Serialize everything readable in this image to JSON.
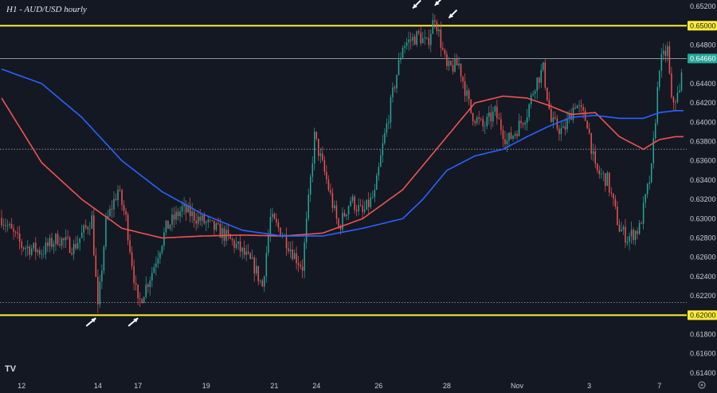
{
  "chart_data": {
    "type": "candlestick",
    "title": "H1 - AUD/USD hourly",
    "ylim": [
      0.6135,
      0.6525
    ],
    "y_ticks": [
      "0.65200",
      "0.64800",
      "0.64400",
      "0.64200",
      "0.64000",
      "0.63800",
      "0.63600",
      "0.63400",
      "0.63200",
      "0.63000",
      "0.62800",
      "0.62600",
      "0.62400",
      "0.62200",
      "0.61800",
      "0.61600",
      "0.61400"
    ],
    "x_ticks": [
      "12",
      "14",
      "17",
      "19",
      "21",
      "24",
      "26",
      "28",
      "Nov",
      "3",
      "7"
    ],
    "x_tick_index": [
      10,
      48,
      68,
      102,
      136,
      157,
      188,
      222,
      257,
      293,
      328
    ],
    "n_bars": 340,
    "horizontal_levels": [
      {
        "value": 0.65,
        "label": "0.65000",
        "style": "solid",
        "color": "#ffeb3b"
      },
      {
        "value": 0.6466,
        "label": "0.64660",
        "style": "solid",
        "color": "#b5b8c0"
      },
      {
        "value": 0.62,
        "label": "0.62000",
        "style": "solid",
        "color": "#ffeb3b"
      },
      {
        "value": 0.6372,
        "label": "",
        "style": "dotted",
        "color": "#9aa0aa"
      },
      {
        "value": 0.6213,
        "label": "",
        "style": "dotted",
        "color": "#9aa0aa"
      }
    ],
    "close_anchors": [
      [
        0,
        0.6301
      ],
      [
        10,
        0.6272
      ],
      [
        20,
        0.6266
      ],
      [
        28,
        0.628
      ],
      [
        36,
        0.627
      ],
      [
        45,
        0.63
      ],
      [
        48,
        0.6205
      ],
      [
        52,
        0.6295
      ],
      [
        58,
        0.633
      ],
      [
        62,
        0.63
      ],
      [
        68,
        0.621
      ],
      [
        75,
        0.6245
      ],
      [
        82,
        0.629
      ],
      [
        90,
        0.631
      ],
      [
        98,
        0.63
      ],
      [
        110,
        0.6285
      ],
      [
        118,
        0.627
      ],
      [
        126,
        0.625
      ],
      [
        130,
        0.623
      ],
      [
        134,
        0.63
      ],
      [
        140,
        0.6285
      ],
      [
        146,
        0.6262
      ],
      [
        150,
        0.625
      ],
      [
        156,
        0.6385
      ],
      [
        162,
        0.634
      ],
      [
        168,
        0.629
      ],
      [
        174,
        0.632
      ],
      [
        180,
        0.6305
      ],
      [
        186,
        0.6325
      ],
      [
        190,
        0.6375
      ],
      [
        196,
        0.644
      ],
      [
        200,
        0.648
      ],
      [
        208,
        0.649
      ],
      [
        212,
        0.648
      ],
      [
        216,
        0.651
      ],
      [
        222,
        0.6455
      ],
      [
        228,
        0.646
      ],
      [
        234,
        0.641
      ],
      [
        240,
        0.6395
      ],
      [
        246,
        0.641
      ],
      [
        252,
        0.638
      ],
      [
        256,
        0.639
      ],
      [
        262,
        0.641
      ],
      [
        266,
        0.644
      ],
      [
        270,
        0.6455
      ],
      [
        274,
        0.64
      ],
      [
        280,
        0.639
      ],
      [
        286,
        0.642
      ],
      [
        292,
        0.64
      ],
      [
        296,
        0.635
      ],
      [
        302,
        0.634
      ],
      [
        308,
        0.629
      ],
      [
        312,
        0.628
      ],
      [
        318,
        0.629
      ],
      [
        324,
        0.635
      ],
      [
        328,
        0.646
      ],
      [
        332,
        0.6475
      ],
      [
        334,
        0.642
      ],
      [
        338,
        0.643
      ],
      [
        340,
        0.6466
      ]
    ],
    "ma_red_anchors": [
      [
        0,
        0.6425
      ],
      [
        20,
        0.6358
      ],
      [
        40,
        0.632
      ],
      [
        60,
        0.629
      ],
      [
        80,
        0.628
      ],
      [
        100,
        0.6282
      ],
      [
        120,
        0.6283
      ],
      [
        140,
        0.6282
      ],
      [
        160,
        0.6285
      ],
      [
        180,
        0.63
      ],
      [
        200,
        0.633
      ],
      [
        210,
        0.6355
      ],
      [
        222,
        0.6385
      ],
      [
        236,
        0.642
      ],
      [
        250,
        0.6427
      ],
      [
        262,
        0.6425
      ],
      [
        272,
        0.6418
      ],
      [
        284,
        0.6408
      ],
      [
        296,
        0.641
      ],
      [
        308,
        0.6385
      ],
      [
        320,
        0.6372
      ],
      [
        328,
        0.6382
      ],
      [
        336,
        0.6385
      ]
    ],
    "ma_blue_anchors": [
      [
        0,
        0.6455
      ],
      [
        20,
        0.644
      ],
      [
        40,
        0.6405
      ],
      [
        60,
        0.636
      ],
      [
        80,
        0.6328
      ],
      [
        100,
        0.6305
      ],
      [
        120,
        0.6288
      ],
      [
        140,
        0.6282
      ],
      [
        160,
        0.6282
      ],
      [
        180,
        0.629
      ],
      [
        200,
        0.63
      ],
      [
        210,
        0.632
      ],
      [
        222,
        0.635
      ],
      [
        236,
        0.6365
      ],
      [
        250,
        0.6372
      ],
      [
        262,
        0.6385
      ],
      [
        272,
        0.6395
      ],
      [
        284,
        0.6405
      ],
      [
        296,
        0.6407
      ],
      [
        308,
        0.6404
      ],
      [
        320,
        0.6404
      ],
      [
        328,
        0.641
      ],
      [
        336,
        0.6412
      ]
    ],
    "annotations": [
      {
        "type": "arrow",
        "bar": 205,
        "value": 0.6518,
        "direction": "down-left"
      },
      {
        "type": "arrow",
        "bar": 216,
        "value": 0.6521,
        "direction": "down-left"
      },
      {
        "type": "arrow",
        "bar": 223,
        "value": 0.6508,
        "direction": "down-left"
      },
      {
        "type": "arrow",
        "bar": 47,
        "value": 0.6197,
        "direction": "up-left"
      },
      {
        "type": "arrow",
        "bar": 68,
        "value": 0.6197,
        "direction": "up-left"
      }
    ],
    "colors": {
      "background": "#141823",
      "up": "#26a69a",
      "down": "#ef5350",
      "ma_red": "#ef5350",
      "ma_blue": "#2962ff",
      "yellow": "#ffeb3b",
      "price_tag": "#26a69a"
    },
    "grid": false
  }
}
